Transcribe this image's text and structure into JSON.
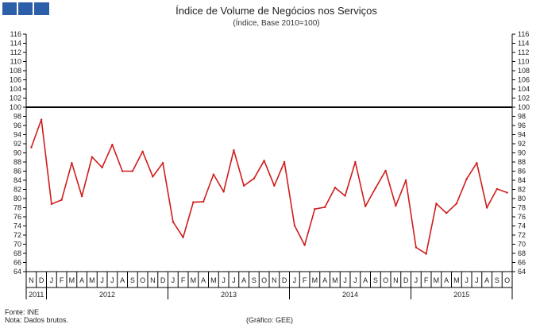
{
  "header": {
    "logo": {
      "icon": "ine-logo-blocks",
      "color": "#2d5fa8"
    }
  },
  "chart_data": {
    "type": "line",
    "title": "Índice de Volume de Negócios nos Serviços",
    "subtitle": "(Índice, Base 2010=100)",
    "ylim": [
      64,
      116
    ],
    "yticks": [
      "64",
      "66",
      "68",
      "70",
      "72",
      "74",
      "76",
      "78",
      "80",
      "82",
      "84",
      "86",
      "88",
      "90",
      "92",
      "94",
      "96",
      "98",
      "100",
      "102",
      "104",
      "106",
      "108",
      "110",
      "112",
      "114",
      "116"
    ],
    "reference_line": {
      "value": 100,
      "color": "#000000"
    },
    "series": [
      {
        "name": "Índice de Volume de Negócios nos Serviços",
        "color": "#d01c1c",
        "values": [
          91.2,
          97.3,
          78.8,
          79.7,
          87.8,
          80.5,
          89.1,
          86.8,
          91.8,
          86.0,
          86.0,
          90.3,
          84.8,
          87.8,
          74.9,
          71.5,
          79.2,
          79.3,
          85.3,
          81.5,
          90.6,
          82.8,
          84.4,
          88.3,
          82.8,
          88.0,
          74.1,
          69.8,
          77.7,
          78.1,
          82.4,
          80.6,
          88.0,
          78.3,
          82.3,
          86.1,
          78.4,
          84.0,
          69.3,
          67.9,
          78.9,
          76.8,
          78.9,
          84.3,
          87.8,
          78.0,
          82.1,
          81.3
        ]
      }
    ],
    "x_months": [
      "N",
      "D",
      "J",
      "F",
      "M",
      "A",
      "M",
      "J",
      "J",
      "A",
      "S",
      "O",
      "N",
      "D",
      "J",
      "F",
      "M",
      "A",
      "M",
      "J",
      "J",
      "A",
      "S",
      "O",
      "N",
      "D",
      "J",
      "F",
      "M",
      "A",
      "M",
      "J",
      "J",
      "A",
      "S",
      "O",
      "N",
      "D",
      "J",
      "F",
      "M",
      "A",
      "M",
      "J",
      "J",
      "A",
      "S",
      "O"
    ],
    "x_years": [
      {
        "label": "2011",
        "start": 0,
        "end": 2
      },
      {
        "label": "2012",
        "start": 2,
        "end": 14
      },
      {
        "label": "2013",
        "start": 14,
        "end": 26
      },
      {
        "label": "2014",
        "start": 26,
        "end": 38
      },
      {
        "label": "2015",
        "start": 38,
        "end": 48
      }
    ]
  },
  "footer": {
    "source": "Fonte: INE",
    "note": "Nota: Dados brutos.",
    "credit": "(Gráfico: GEE)"
  }
}
